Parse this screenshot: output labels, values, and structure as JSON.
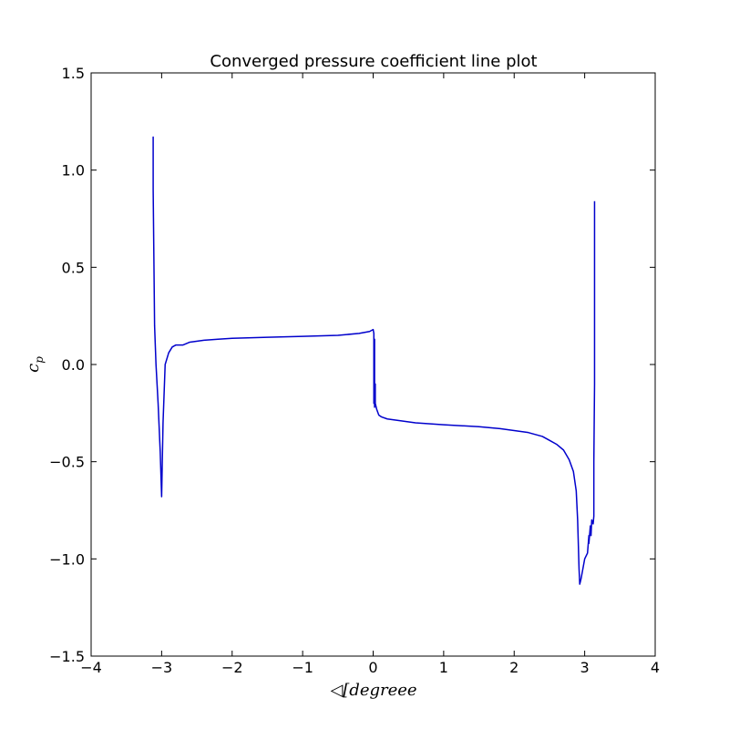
{
  "chart_data": {
    "type": "line",
    "title": "Converged pressure coefficient line plot",
    "xlabel": "◁[degreee",
    "ylabel": "c",
    "ylabel_subscript": "p",
    "xlim": [
      -4,
      4
    ],
    "ylim": [
      -1.5,
      1.5
    ],
    "xticks": [
      -4,
      -3,
      -2,
      -1,
      0,
      1,
      2,
      3,
      4
    ],
    "xtick_labels": [
      "−4",
      "−3",
      "−2",
      "−1",
      "0",
      "1",
      "2",
      "3",
      "4"
    ],
    "yticks": [
      1.5,
      1.0,
      0.5,
      0.0,
      -0.5,
      -1.0,
      -1.5
    ],
    "ytick_labels": [
      "1.5",
      "1.0",
      "0.5",
      "0.0",
      "−0.5",
      "−1.0",
      "−1.5"
    ],
    "grid": false,
    "series": [
      {
        "color": "#0000cc",
        "x": [
          -3.12,
          -3.12,
          -3.12,
          -3.11,
          -3.1,
          -3.08,
          -3.05,
          -3.02,
          -3.0,
          -2.98,
          -2.95,
          -2.9,
          -2.85,
          -2.8,
          -2.75,
          -2.7,
          -2.6,
          -2.4,
          -2.2,
          -2.0,
          -1.5,
          -1.0,
          -0.5,
          -0.2,
          -0.05,
          0.0,
          0.01,
          0.01,
          0.02,
          0.02,
          0.03,
          0.03,
          0.05,
          0.08,
          0.12,
          0.2,
          0.4,
          0.6,
          1.0,
          1.5,
          1.8,
          2.0,
          2.2,
          2.4,
          2.5,
          2.6,
          2.7,
          2.78,
          2.84,
          2.88,
          2.9,
          2.92,
          2.93,
          2.95,
          3.0,
          3.04,
          3.06,
          3.06,
          3.08,
          3.09,
          3.1,
          3.12,
          3.13,
          3.13,
          3.14,
          3.14
        ],
        "y": [
          1.02,
          1.17,
          0.9,
          0.55,
          0.2,
          0.0,
          -0.2,
          -0.45,
          -0.68,
          -0.3,
          0.0,
          0.06,
          0.09,
          0.1,
          0.1,
          0.1,
          0.115,
          0.125,
          0.13,
          0.135,
          0.14,
          0.145,
          0.15,
          0.16,
          0.17,
          0.18,
          0.16,
          -0.2,
          0.13,
          -0.22,
          -0.1,
          -0.2,
          -0.23,
          -0.26,
          -0.27,
          -0.28,
          -0.29,
          -0.3,
          -0.31,
          -0.32,
          -0.33,
          -0.34,
          -0.35,
          -0.37,
          -0.39,
          -0.41,
          -0.44,
          -0.49,
          -0.55,
          -0.65,
          -0.8,
          -1.05,
          -1.13,
          -1.1,
          -1.0,
          -0.97,
          -0.88,
          -0.92,
          -0.83,
          -0.88,
          -0.8,
          -0.82,
          -0.78,
          -0.5,
          -0.1,
          0.84
        ]
      }
    ]
  }
}
